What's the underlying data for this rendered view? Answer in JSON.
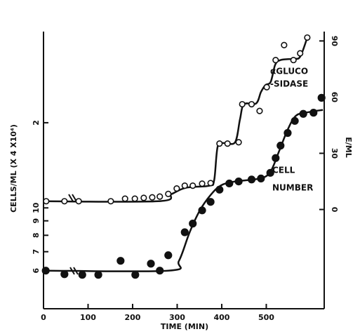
{
  "chart_data": {
    "type": "scatter",
    "xlabel": "TIME (MIN)",
    "ylabel": "CELLS/ML (X 4 X10⁴)",
    "y2label": "E/ML",
    "xlim": [
      0,
      630
    ],
    "xticks": [
      0,
      100,
      200,
      300,
      400,
      500
    ],
    "ylim": [
      4.4,
      42
    ],
    "ylog": true,
    "yticks": [
      6,
      7,
      8,
      9,
      10,
      {
        "value": 20,
        "label": "2"
      }
    ],
    "y2lim": [
      -53,
      95
    ],
    "y2ticks": [
      0,
      30,
      60,
      90
    ],
    "annotations": [
      "αGLUCO",
      "-SIDASE",
      "CELL",
      "NUMBER"
    ],
    "series": [
      {
        "color": "#111111",
        "marker": "filled",
        "x": [
          5,
          47,
          87,
          123,
          173,
          206,
          241,
          261,
          280,
          317,
          335,
          356,
          375,
          395,
          417,
          438,
          467,
          488,
          509,
          521,
          532,
          548,
          564,
          583,
          606,
          624
        ],
        "values": [
          6.0,
          5.83,
          5.8,
          5.8,
          6.5,
          5.8,
          6.35,
          6.0,
          6.8,
          8.2,
          8.8,
          9.8,
          10.5,
          11.6,
          12.2,
          12.4,
          12.6,
          12.7,
          13.3,
          15.0,
          16.6,
          18.4,
          20.3,
          21.5,
          21.7,
          24.5
        ],
        "fit_x": [
          0,
          280,
          304,
          328,
          351,
          375,
          398,
          430,
          485,
          509,
          529,
          548,
          567,
          595,
          627
        ],
        "fit_values": [
          6.0,
          6.0,
          6.5,
          8.2,
          9.8,
          11.1,
          12.0,
          12.4,
          12.7,
          13.4,
          15.9,
          18.9,
          21.2,
          21.8,
          22.2
        ]
      },
      {
        "color": "#111111",
        "marker": "open",
        "axis": "y2",
        "x": [
          6,
          47,
          79,
          151,
          183,
          205,
          225,
          244,
          261,
          280,
          299,
          317,
          335,
          356,
          375,
          395,
          413,
          438,
          446,
          467,
          485,
          501,
          521,
          540,
          561,
          576,
          592
        ],
        "values": [
          4.4,
          4.4,
          4.4,
          4.4,
          5.8,
          5.8,
          6.2,
          6.5,
          6.9,
          8.3,
          11.2,
          12.7,
          12.7,
          13.8,
          14.1,
          35.2,
          35.2,
          35.9,
          56.2,
          56.2,
          52.6,
          65.3,
          79.8,
          87.8,
          79.8,
          83.4,
          91.8
        ],
        "fit_x": [
          0,
          257,
          288,
          320,
          372,
          383,
          391,
          406,
          430,
          441,
          450,
          477,
          488,
          498,
          510,
          520,
          532,
          561,
          576,
          592
        ],
        "fit_values": [
          4.4,
          4.4,
          8.3,
          11.6,
          12.7,
          15.6,
          33.7,
          35.5,
          35.9,
          48.2,
          56.2,
          56.6,
          62.7,
          66.4,
          68.2,
          77.3,
          79.8,
          80.5,
          81.6,
          91.8
        ]
      }
    ]
  }
}
